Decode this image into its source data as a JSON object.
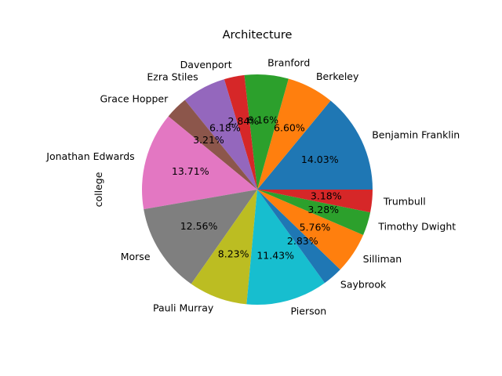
{
  "chart_data": {
    "type": "pie",
    "title": "Architecture",
    "ylabel": "college",
    "start_angle_deg": 0,
    "direction": "counterclockwise",
    "slices": [
      {
        "label": "Benjamin Franklin",
        "value": 14.03,
        "pct_label": "14.03%",
        "color": "#1f77b4"
      },
      {
        "label": "Berkeley",
        "value": 6.6,
        "pct_label": "6.60%",
        "color": "#ff7f0e"
      },
      {
        "label": "Branford",
        "value": 6.16,
        "pct_label": "6.16%",
        "color": "#2ca02c"
      },
      {
        "label": "Davenport",
        "value": 2.84,
        "pct_label": "2.84%",
        "color": "#d62728"
      },
      {
        "label": "Ezra Stiles",
        "value": 6.18,
        "pct_label": "6.18%",
        "color": "#9467bd"
      },
      {
        "label": "Grace Hopper",
        "value": 3.21,
        "pct_label": "3.21%",
        "color": "#8c564b"
      },
      {
        "label": "Jonathan Edwards",
        "value": 13.71,
        "pct_label": "13.71%",
        "color": "#e377c2"
      },
      {
        "label": "Morse",
        "value": 12.56,
        "pct_label": "12.56%",
        "color": "#7f7f7f"
      },
      {
        "label": "Pauli Murray",
        "value": 8.23,
        "pct_label": "8.23%",
        "color": "#bcbd22"
      },
      {
        "label": "Pierson",
        "value": 11.43,
        "pct_label": "11.43%",
        "color": "#17becf"
      },
      {
        "label": "Saybrook",
        "value": 2.83,
        "pct_label": "2.83%",
        "color": "#1f77b4"
      },
      {
        "label": "Silliman",
        "value": 5.76,
        "pct_label": "5.76%",
        "color": "#ff7f0e"
      },
      {
        "label": "Timothy Dwight",
        "value": 3.28,
        "pct_label": "3.28%",
        "color": "#2ca02c"
      },
      {
        "label": "Trumbull",
        "value": 3.18,
        "pct_label": "3.18%",
        "color": "#d62728"
      }
    ]
  }
}
